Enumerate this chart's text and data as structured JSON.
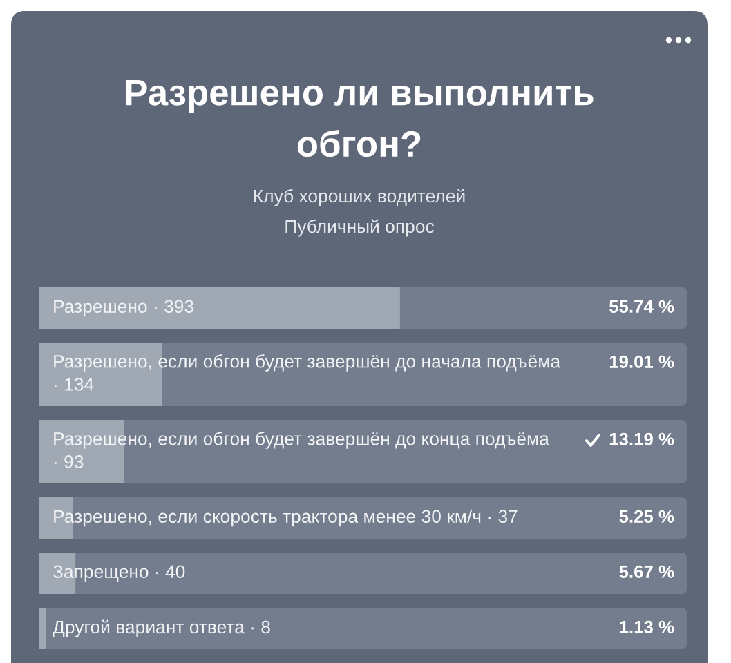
{
  "chart_data": {
    "type": "bar",
    "orientation": "horizontal",
    "title": "Разрешено ли выполнить обгон?",
    "subtitle": "Клуб хороших водителей",
    "annotations": [
      "Публичный опрос"
    ],
    "categories": [
      "Разрешено · 393",
      "Разрешено, если обгон будет завершён до начала подъёма · 134",
      "Разрешено, если обгон будет завершён до конца подъёма · 93",
      "Разрешено, если скорость трактора менее 30 км/ч · 37",
      "Запрещено · 40",
      "Другой вариант ответа · 8"
    ],
    "values": [
      55.74,
      19.01,
      13.19,
      5.25,
      5.67,
      1.13
    ],
    "value_labels": [
      "55.74 %",
      "19.01 %",
      "13.19 %",
      "5.25 %",
      "5.67 %",
      "1.13 %"
    ],
    "color": "#a0a8b4"
  }
}
